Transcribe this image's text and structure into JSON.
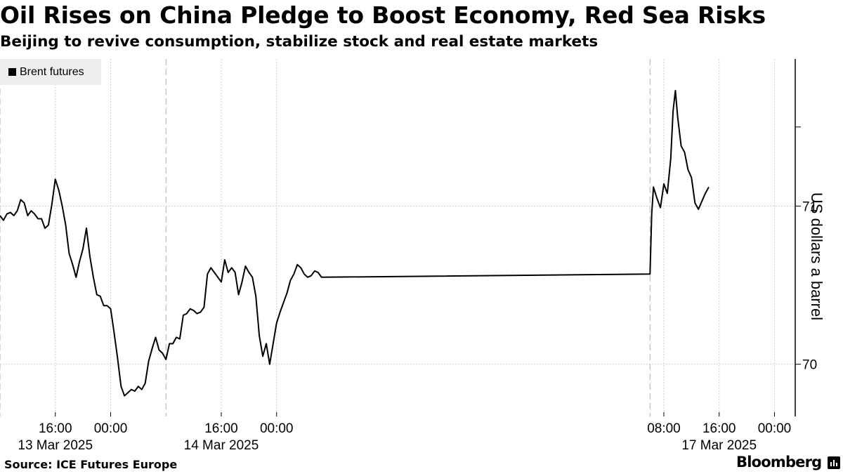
{
  "header": {
    "title": "Oil Rises on China Pledge to Boost Economy, Red Sea Risks",
    "subtitle": "Beijing to revive consumption, stabilize stock and real estate markets"
  },
  "footer": {
    "source": "Source: ICE Futures Europe",
    "brand": "Bloomberg",
    "brand_icon": "bar-chart-icon"
  },
  "colors": {
    "line": "#000000",
    "grid": "#cfcfcf",
    "axis": "#000000",
    "legend_bg": "#eeeeee"
  },
  "chart_data": {
    "type": "line",
    "title": "Oil Rises on China Pledge to Boost Economy, Red Sea Risks",
    "subtitle": "Beijing to revive consumption, stabilize stock and real estate markets",
    "ylabel": "US dollars a barrel",
    "xlabel": "",
    "legend": {
      "entries": [
        "Brent futures"
      ],
      "placement": "top-left"
    },
    "grid": true,
    "y_axis_side": "right",
    "ylim": [
      69.67,
      71.93
    ],
    "yticks": [
      70,
      71
    ],
    "xlim": [
      "2025-03-13 08:00",
      "2025-03-18 03:00"
    ],
    "x_ticks": [
      {
        "x": "2025-03-13 16:00",
        "label": "16:00",
        "date_label": "13 Mar 2025"
      },
      {
        "x": "2025-03-14 00:00",
        "label": "00:00",
        "date_label": ""
      },
      {
        "x": "2025-03-14 16:00",
        "label": "16:00",
        "date_label": "14 Mar 2025"
      },
      {
        "x": "2025-03-15 00:00",
        "label": "00:00",
        "date_label": ""
      },
      {
        "x": "2025-03-17 08:00",
        "label": "08:00",
        "date_label": ""
      },
      {
        "x": "2025-03-17 16:00",
        "label": "16:00",
        "date_label": "17 Mar 2025"
      },
      {
        "x": "2025-03-18 00:00",
        "label": "00:00",
        "date_label": ""
      }
    ],
    "session_breaks": [
      "2025-03-13 08:00",
      "2025-03-14 08:00",
      "2025-03-17 06:00"
    ],
    "series": [
      {
        "name": "Brent futures",
        "points": [
          [
            "2025-03-13 08:00",
            70.94
          ],
          [
            "2025-03-13 08:30",
            70.91
          ],
          [
            "2025-03-13 09:00",
            70.95
          ],
          [
            "2025-03-13 09:30",
            70.96
          ],
          [
            "2025-03-13 10:00",
            70.94
          ],
          [
            "2025-03-13 10:30",
            70.97
          ],
          [
            "2025-03-13 11:00",
            71.04
          ],
          [
            "2025-03-13 11:30",
            71.02
          ],
          [
            "2025-03-13 12:00",
            70.94
          ],
          [
            "2025-03-13 12:30",
            70.97
          ],
          [
            "2025-03-13 13:00",
            70.95
          ],
          [
            "2025-03-13 13:30",
            70.92
          ],
          [
            "2025-03-13 14:00",
            70.92
          ],
          [
            "2025-03-13 14:30",
            70.86
          ],
          [
            "2025-03-13 15:00",
            70.88
          ],
          [
            "2025-03-13 15:30",
            71.01
          ],
          [
            "2025-03-13 16:00",
            71.17
          ],
          [
            "2025-03-13 16:30",
            71.1
          ],
          [
            "2025-03-13 17:00",
            71.0
          ],
          [
            "2025-03-13 17:30",
            70.88
          ],
          [
            "2025-03-13 18:00",
            70.7
          ],
          [
            "2025-03-13 18:30",
            70.63
          ],
          [
            "2025-03-13 19:00",
            70.55
          ],
          [
            "2025-03-13 19:30",
            70.65
          ],
          [
            "2025-03-13 20:00",
            70.73
          ],
          [
            "2025-03-13 20:30",
            70.86
          ],
          [
            "2025-03-13 21:00",
            70.68
          ],
          [
            "2025-03-13 21:30",
            70.55
          ],
          [
            "2025-03-13 22:00",
            70.44
          ],
          [
            "2025-03-13 22:30",
            70.43
          ],
          [
            "2025-03-13 23:00",
            70.37
          ],
          [
            "2025-03-13 23:30",
            70.37
          ],
          [
            "2025-03-14 00:00",
            70.35
          ],
          [
            "2025-03-14 00:30",
            70.2
          ],
          [
            "2025-03-14 01:00",
            70.04
          ],
          [
            "2025-03-14 01:30",
            69.86
          ],
          [
            "2025-03-14 02:00",
            69.8
          ],
          [
            "2025-03-14 02:30",
            69.82
          ],
          [
            "2025-03-14 03:00",
            69.84
          ],
          [
            "2025-03-14 03:30",
            69.83
          ],
          [
            "2025-03-14 04:00",
            69.86
          ],
          [
            "2025-03-14 04:30",
            69.84
          ],
          [
            "2025-03-14 05:00",
            69.88
          ],
          [
            "2025-03-14 05:30",
            70.02
          ],
          [
            "2025-03-14 06:00",
            70.1
          ],
          [
            "2025-03-14 06:30",
            70.17
          ],
          [
            "2025-03-14 07:00",
            70.09
          ],
          [
            "2025-03-14 07:30",
            70.07
          ],
          [
            "2025-03-14 08:00",
            70.03
          ],
          [
            "2025-03-14 08:30",
            70.13
          ],
          [
            "2025-03-14 09:00",
            70.13
          ],
          [
            "2025-03-14 09:30",
            70.17
          ],
          [
            "2025-03-14 10:00",
            70.16
          ],
          [
            "2025-03-14 10:30",
            70.31
          ],
          [
            "2025-03-14 11:00",
            70.32
          ],
          [
            "2025-03-14 11:30",
            70.35
          ],
          [
            "2025-03-14 12:00",
            70.34
          ],
          [
            "2025-03-14 12:30",
            70.32
          ],
          [
            "2025-03-14 13:00",
            70.33
          ],
          [
            "2025-03-14 13:30",
            70.36
          ],
          [
            "2025-03-14 14:00",
            70.57
          ],
          [
            "2025-03-14 14:30",
            70.61
          ],
          [
            "2025-03-14 15:00",
            70.58
          ],
          [
            "2025-03-14 15:30",
            70.55
          ],
          [
            "2025-03-14 16:00",
            70.52
          ],
          [
            "2025-03-14 16:30",
            70.66
          ],
          [
            "2025-03-14 17:00",
            70.58
          ],
          [
            "2025-03-14 17:30",
            70.61
          ],
          [
            "2025-03-14 18:00",
            70.58
          ],
          [
            "2025-03-14 18:30",
            70.44
          ],
          [
            "2025-03-14 19:00",
            70.52
          ],
          [
            "2025-03-14 19:30",
            70.62
          ],
          [
            "2025-03-14 20:00",
            70.58
          ],
          [
            "2025-03-14 20:30",
            70.55
          ],
          [
            "2025-03-14 21:00",
            70.43
          ],
          [
            "2025-03-14 21:30",
            70.18
          ],
          [
            "2025-03-14 22:00",
            70.05
          ],
          [
            "2025-03-14 22:30",
            70.13
          ],
          [
            "2025-03-14 23:00",
            70.0
          ],
          [
            "2025-03-15 00:00",
            70.26
          ],
          [
            "2025-03-15 00:30",
            70.33
          ],
          [
            "2025-03-15 01:00",
            70.39
          ],
          [
            "2025-03-15 01:30",
            70.45
          ],
          [
            "2025-03-15 02:00",
            70.53
          ],
          [
            "2025-03-15 02:30",
            70.57
          ],
          [
            "2025-03-15 03:00",
            70.63
          ],
          [
            "2025-03-15 03:30",
            70.61
          ],
          [
            "2025-03-15 04:00",
            70.57
          ],
          [
            "2025-03-15 04:30",
            70.55
          ],
          [
            "2025-03-15 05:00",
            70.56
          ],
          [
            "2025-03-15 05:30",
            70.59
          ],
          [
            "2025-03-15 06:00",
            70.58
          ],
          [
            "2025-03-15 06:30",
            70.55
          ],
          [
            "2025-03-17 06:00",
            70.57
          ],
          [
            "2025-03-17 06:15",
            70.95
          ],
          [
            "2025-03-17 06:30",
            71.12
          ],
          [
            "2025-03-17 07:00",
            71.05
          ],
          [
            "2025-03-17 07:30",
            70.99
          ],
          [
            "2025-03-17 08:00",
            71.14
          ],
          [
            "2025-03-17 08:30",
            71.08
          ],
          [
            "2025-03-17 09:00",
            71.3
          ],
          [
            "2025-03-17 09:20",
            71.6
          ],
          [
            "2025-03-17 09:40",
            71.73
          ],
          [
            "2025-03-17 10:00",
            71.56
          ],
          [
            "2025-03-17 10:30",
            71.38
          ],
          [
            "2025-03-17 11:00",
            71.34
          ],
          [
            "2025-03-17 11:30",
            71.23
          ],
          [
            "2025-03-17 12:00",
            71.18
          ],
          [
            "2025-03-17 12:30",
            71.02
          ],
          [
            "2025-03-17 13:00",
            70.98
          ],
          [
            "2025-03-17 13:30",
            71.03
          ],
          [
            "2025-03-17 14:00",
            71.08
          ],
          [
            "2025-03-17 14:30",
            71.12
          ]
        ]
      }
    ]
  }
}
